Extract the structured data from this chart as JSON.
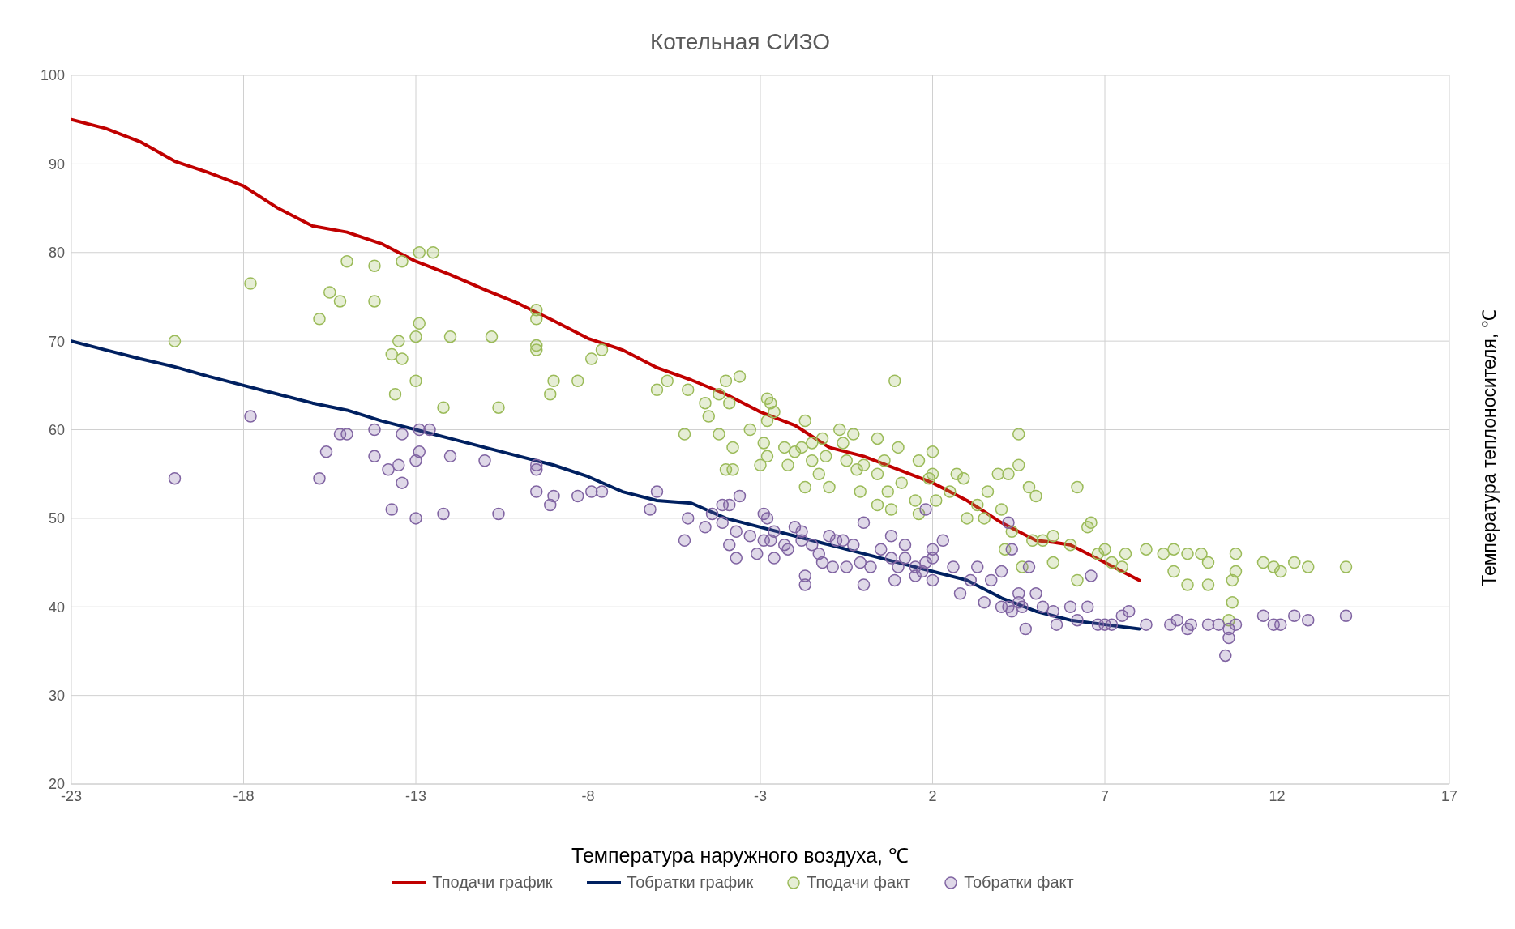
{
  "chart_data": {
    "type": "scatter",
    "title": "Котельная СИЗО",
    "xlabel": "Температура наружного воздуха, ℃",
    "ylabel": "Температура теплоносителя, ℃",
    "xlim": [
      -23,
      17
    ],
    "xticks": [
      -23,
      -18,
      -13,
      -8,
      -3,
      2,
      7,
      12,
      17
    ],
    "ylim": [
      20,
      100
    ],
    "yticks": [
      20,
      30,
      40,
      50,
      60,
      70,
      80,
      90,
      100
    ],
    "grid": true,
    "legend": "bottom",
    "series": [
      {
        "name": "Тподачи график",
        "type": "line",
        "marker": "none",
        "line_style": "solid",
        "color": "#c00000",
        "x": [
          -23,
          -22,
          -21,
          -20,
          -19,
          -18,
          -17,
          -16,
          -15,
          -14,
          -13,
          -12,
          -11,
          -10,
          -9,
          -8,
          -7,
          -6,
          -5,
          -4,
          -3,
          -2,
          -1,
          0,
          1,
          2,
          3,
          4,
          5,
          5.5,
          6,
          7,
          8
        ],
        "values": [
          95,
          94,
          92.5,
          90.3,
          89,
          87.5,
          85,
          83,
          82.3,
          81,
          79,
          77.5,
          75.8,
          74.2,
          72.3,
          70.3,
          69,
          67,
          65.6,
          64,
          62,
          60.5,
          58,
          57,
          55.5,
          54,
          52,
          49.5,
          47.5,
          47.3,
          47,
          45,
          43
        ]
      },
      {
        "name": "Тобратки график",
        "type": "line",
        "marker": "none",
        "line_style": "solid",
        "color": "#002060",
        "x": [
          -23,
          -22,
          -21,
          -20,
          -19,
          -18,
          -17,
          -16,
          -15,
          -14,
          -13,
          -12,
          -11,
          -10,
          -9,
          -8,
          -7,
          -6,
          -5,
          -4,
          -3,
          -2,
          -1,
          0,
          1,
          2,
          3,
          4,
          5,
          6,
          7,
          8
        ],
        "values": [
          70,
          69,
          68,
          67.1,
          66,
          65,
          64,
          63,
          62.2,
          61,
          60,
          59,
          58,
          57,
          56,
          54.7,
          53,
          52,
          51.7,
          50,
          49,
          48,
          47,
          46,
          45,
          44,
          43,
          41,
          39.5,
          38.5,
          38,
          37.5
        ]
      },
      {
        "name": "Тподачи факт",
        "marker": "circle",
        "color": "#9bbb59",
        "x": [
          -20,
          -17.8,
          -15.8,
          -15.5,
          -15.2,
          -15,
          -14.2,
          -14.2,
          -13.7,
          -13.5,
          -13.4,
          -13.4,
          -13.6,
          -13,
          -13,
          -12.9,
          -12.9,
          -12.5,
          -12.2,
          -12,
          -10.8,
          -10.6,
          -9.5,
          -9.5,
          -9.5,
          -9.5,
          -9.1,
          -9,
          -8.3,
          -7.9,
          -7.6,
          -6,
          -5.7,
          -5.2,
          -5.1,
          -4.6,
          -4.5,
          -4.2,
          -4.2,
          -4,
          -4,
          -3.9,
          -3.8,
          -3.8,
          -3.6,
          -3.3,
          -2.8,
          -2.7,
          -3,
          -2.9,
          -2.8,
          -2.8,
          -2.6,
          -2.3,
          -2.2,
          -2,
          -1.8,
          -1.7,
          -1.7,
          -1.5,
          -1.5,
          -1.3,
          -1.2,
          -1.1,
          -1,
          -0.7,
          -0.6,
          -0.5,
          -0.3,
          -0.2,
          -0.1,
          0,
          0.4,
          0.4,
          0.4,
          0.6,
          0.7,
          0.8,
          0.9,
          1,
          1.1,
          1.5,
          1.6,
          1.6,
          1.9,
          2,
          2,
          2.1,
          2.5,
          2.7,
          2.9,
          3,
          3.3,
          3.5,
          3.6,
          3.9,
          4,
          4.2,
          4.5,
          4.5,
          4.1,
          4.3,
          4.6,
          4.8,
          5,
          4.9,
          5.2,
          5.5,
          5.5,
          6,
          6.2,
          6.2,
          6.5,
          6.6,
          6.8,
          7,
          7.2,
          7.5,
          7.6,
          8.2,
          8.7,
          9,
          9,
          9.4,
          9.4,
          9.8,
          10,
          10,
          10.8,
          10.8,
          10.7,
          10.7,
          10.6,
          11.6,
          11.9,
          12.1,
          12.5,
          12.9,
          14
        ],
        "values": [
          70,
          76.5,
          72.5,
          75.5,
          74.5,
          79,
          78.5,
          74.5,
          68.5,
          70,
          68,
          79,
          64,
          70.5,
          65.5,
          72,
          80,
          80,
          62.5,
          70.5,
          70.5,
          62.5,
          73.5,
          72.5,
          69.5,
          69,
          64,
          65.5,
          65.5,
          68,
          69,
          64.5,
          65.5,
          59.5,
          64.5,
          63,
          61.5,
          59.5,
          64,
          55.5,
          65.5,
          63,
          55.5,
          58,
          66,
          60,
          63.5,
          63,
          56,
          58.5,
          61,
          57,
          62,
          58,
          56,
          57.5,
          58,
          61,
          53.5,
          56.5,
          58.5,
          55,
          59,
          57,
          53.5,
          60,
          58.5,
          56.5,
          59.5,
          55.5,
          53,
          56,
          59,
          55,
          51.5,
          56.5,
          53,
          51,
          65.5,
          58,
          54,
          52,
          56.5,
          50.5,
          54.5,
          55,
          57.5,
          52,
          53,
          55,
          54.5,
          50,
          51.5,
          50,
          53,
          55,
          51,
          55,
          56,
          59.5,
          46.5,
          48.5,
          44.5,
          53.5,
          52.5,
          47.5,
          47.5,
          48,
          45,
          47,
          53.5,
          43,
          49,
          49.5,
          46,
          46.5,
          45,
          44.5,
          46,
          46.5,
          46,
          46.5,
          44,
          46,
          42.5,
          46,
          45,
          42.5,
          46,
          44,
          43,
          40.5,
          38.5,
          45,
          44.5,
          44,
          45,
          44.5,
          44.5
        ]
      },
      {
        "name": "Тобратки факт",
        "marker": "circle",
        "color": "#8064a2",
        "x": [
          -20,
          -17.8,
          -15.8,
          -15.6,
          -15.2,
          -15,
          -14.2,
          -14.2,
          -13.8,
          -13.7,
          -13.5,
          -13.4,
          -13.4,
          -13,
          -13,
          -12.9,
          -12.9,
          -12.6,
          -12.2,
          -12,
          -11,
          -10.6,
          -9.5,
          -9.5,
          -9.5,
          -9.1,
          -9,
          -8.3,
          -7.9,
          -7.6,
          -6.2,
          -6,
          -5.2,
          -5.1,
          -4.6,
          -4.4,
          -4.1,
          -4.1,
          -3.9,
          -3.9,
          -3.7,
          -3.7,
          -3.6,
          -3.3,
          -2.9,
          -2.8,
          -3.1,
          -2.9,
          -2.7,
          -2.6,
          -2.6,
          -2.3,
          -2.2,
          -2,
          -1.8,
          -1.8,
          -1.7,
          -1.7,
          -1.5,
          -1.3,
          -1.2,
          -1,
          -0.9,
          -0.8,
          -0.6,
          -0.5,
          -0.3,
          -0.1,
          0,
          0,
          0.2,
          0.5,
          0.8,
          0.8,
          0.9,
          1,
          1.2,
          1.2,
          1.5,
          1.5,
          1.7,
          1.8,
          2,
          2,
          2,
          2.3,
          2.6,
          2.8,
          3.1,
          3.3,
          3.5,
          3.7,
          4,
          4,
          4.2,
          4.5,
          4.3,
          4.5,
          4.6,
          4.7,
          4.8,
          5,
          5.2,
          5.5,
          5.6,
          6,
          6.2,
          6.5,
          6.6,
          6.8,
          7,
          7.2,
          7.5,
          7.7,
          4.2,
          4.3,
          1.8,
          8.2,
          8.9,
          9.1,
          9.4,
          9.5,
          10,
          10.3,
          10.6,
          10.6,
          10.5,
          10.8,
          11.6,
          11.9,
          12.1,
          12.5,
          12.9,
          14
        ],
        "values": [
          54.5,
          61.5,
          54.5,
          57.5,
          59.5,
          59.5,
          60,
          57,
          55.5,
          51,
          56,
          54,
          59.5,
          50,
          56.5,
          60,
          57.5,
          60,
          50.5,
          57,
          56.5,
          50.5,
          56,
          55.5,
          53,
          51.5,
          52.5,
          52.5,
          53,
          53,
          51,
          53,
          47.5,
          50,
          49,
          50.5,
          49.5,
          51.5,
          47,
          51.5,
          48.5,
          45.5,
          52.5,
          48,
          50.5,
          50,
          46,
          47.5,
          47.5,
          48.5,
          45.5,
          47,
          46.5,
          49,
          48.5,
          47.5,
          43.5,
          42.5,
          47,
          46,
          45,
          48,
          44.5,
          47.5,
          47.5,
          44.5,
          47,
          45,
          49.5,
          42.5,
          44.5,
          46.5,
          45.5,
          48,
          43,
          44.5,
          47,
          45.5,
          44.5,
          43.5,
          44,
          45,
          43,
          45.5,
          46.5,
          47.5,
          44.5,
          41.5,
          43,
          44.5,
          40.5,
          43,
          40,
          44,
          40,
          41.5,
          39.5,
          40.5,
          40,
          37.5,
          44.5,
          41.5,
          40,
          39.5,
          38,
          40,
          38.5,
          40,
          43.5,
          38,
          38,
          38,
          39,
          39.5,
          49.5,
          46.5,
          51,
          38,
          38,
          38.5,
          37.5,
          38,
          38,
          38,
          37.5,
          36.5,
          34.5,
          38,
          39,
          38,
          38,
          39,
          38.5,
          39
        ]
      }
    ]
  }
}
